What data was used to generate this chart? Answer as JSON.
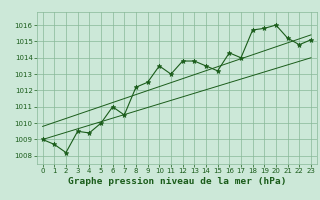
{
  "title": "Graphe pression niveau de la mer (hPa)",
  "x_values": [
    0,
    1,
    2,
    3,
    4,
    5,
    6,
    7,
    8,
    9,
    10,
    11,
    12,
    13,
    14,
    15,
    16,
    17,
    18,
    19,
    20,
    21,
    22,
    23
  ],
  "y_values": [
    1009.0,
    1008.7,
    1008.2,
    1009.5,
    1009.4,
    1010.0,
    1011.0,
    1010.5,
    1012.2,
    1012.5,
    1013.5,
    1013.0,
    1013.8,
    1013.8,
    1013.5,
    1013.2,
    1014.3,
    1014.0,
    1015.7,
    1015.8,
    1016.0,
    1015.2,
    1014.8,
    1015.1
  ],
  "trend1_x": [
    0,
    23
  ],
  "trend1_y": [
    1009.0,
    1014.0
  ],
  "trend2_x": [
    0,
    23
  ],
  "trend2_y": [
    1009.8,
    1015.4
  ],
  "ylim": [
    1007.5,
    1016.8
  ],
  "xlim": [
    -0.5,
    23.5
  ],
  "yticks": [
    1008,
    1009,
    1010,
    1011,
    1012,
    1013,
    1014,
    1015,
    1016
  ],
  "xticks": [
    0,
    1,
    2,
    3,
    4,
    5,
    6,
    7,
    8,
    9,
    10,
    11,
    12,
    13,
    14,
    15,
    16,
    17,
    18,
    19,
    20,
    21,
    22,
    23
  ],
  "line_color": "#1a5c1a",
  "marker": "*",
  "bg_color": "#cce8d8",
  "grid_color": "#88b898",
  "text_color": "#1a5c1a",
  "label_fontsize": 5.0,
  "title_fontsize": 6.8
}
